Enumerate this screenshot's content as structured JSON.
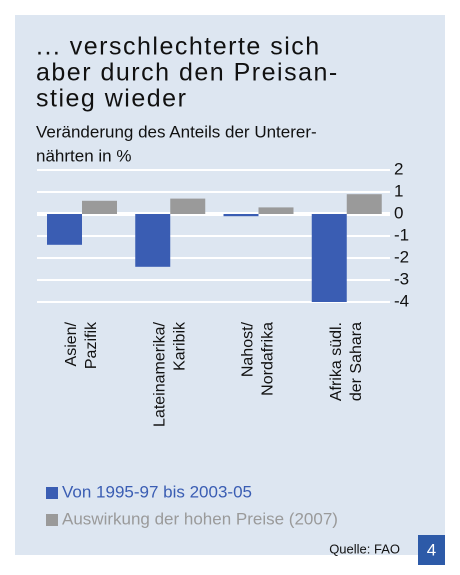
{
  "chart_data": {
    "type": "bar",
    "title": [
      "... verschlechterte sich",
      "aber durch den Preisan-",
      "stieg wieder"
    ],
    "subtitle": [
      "Veränderung des Anteils der Unterer-",
      "nährten in %"
    ],
    "categories": [
      [
        "Asien/",
        "Pazifik"
      ],
      [
        "Lateinamerika/",
        "Karibik"
      ],
      [
        "Nahost/",
        "Nordafrika"
      ],
      [
        "Afrika südl.",
        "der Sahara"
      ]
    ],
    "series": [
      {
        "name": "Von 1995-97 bis 2003-05",
        "color": "#3a5db3",
        "values": [
          -1.4,
          -2.4,
          -0.1,
          -4.0
        ]
      },
      {
        "name": "Auswirkung der hohen Preise (2007)",
        "color": "#9a9a9a",
        "values": [
          0.6,
          0.7,
          0.3,
          0.9
        ]
      }
    ],
    "ylim": [
      -4.2,
      2
    ],
    "yticks": [
      2,
      1,
      0,
      -1,
      -2,
      -3,
      -4
    ],
    "grid": true,
    "source": "Quelle: FAO",
    "page_number": "4"
  }
}
